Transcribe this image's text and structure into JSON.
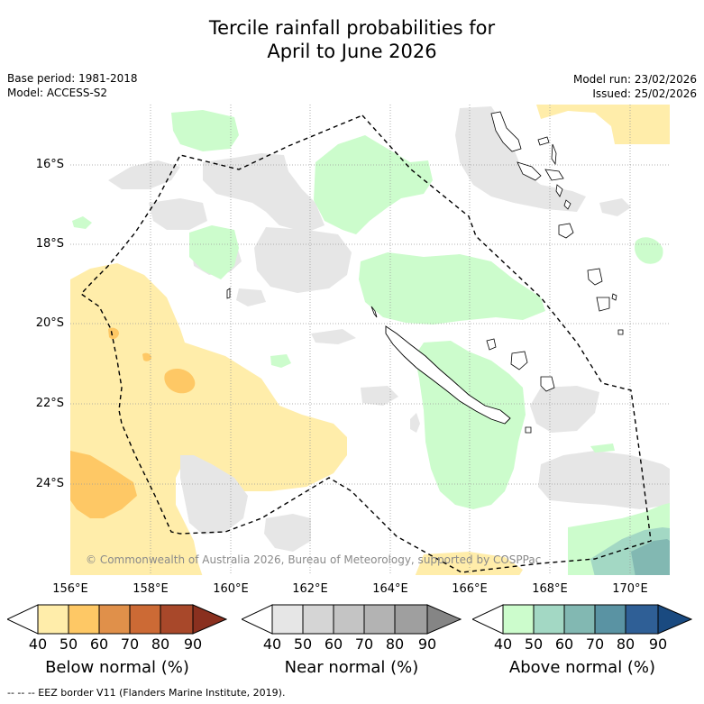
{
  "title_line1": "Tercile rainfall probabilities for",
  "title_line2": "April to June 2026",
  "base_period": "Base period: 1981-2018",
  "model": "Model: ACCESS-S2",
  "model_run": "Model run: 23/02/2026",
  "issued": "Issued: 25/02/2026",
  "lat_labels": [
    "16°S",
    "18°S",
    "20°S",
    "22°S",
    "24°S"
  ],
  "lon_labels": [
    "156°E",
    "158°E",
    "160°E",
    "162°E",
    "164°E",
    "166°E",
    "168°E",
    "170°E"
  ],
  "copyright": "© Commonwealth of Australia 2026, Bureau of Meteorology, supported by COSPPac",
  "legend": {
    "below": {
      "title": "Below normal (%)",
      "ticks": [
        "40",
        "50",
        "60",
        "70",
        "80",
        "90"
      ],
      "colors": [
        "#ffedaa",
        "#fec865",
        "#e0904a",
        "#cc6a35",
        "#a8482a",
        "#8a301f"
      ]
    },
    "near": {
      "title": "Near normal (%)",
      "ticks": [
        "40",
        "50",
        "60",
        "70",
        "80",
        "90"
      ],
      "colors": [
        "#e6e6e6",
        "#d5d5d5",
        "#c4c4c4",
        "#b3b3b3",
        "#9f9f9f",
        "#858585"
      ]
    },
    "above": {
      "title": "Above normal (%)",
      "ticks": [
        "40",
        "50",
        "60",
        "70",
        "80",
        "90"
      ],
      "colors": [
        "#ccfccc",
        "#a3d8c4",
        "#82b8b2",
        "#5a93a3",
        "#2f5f96",
        "#1a4a80"
      ]
    }
  },
  "footer": "--  --  -- EEZ border V11 (Flanders Marine Institute, 2019)."
}
